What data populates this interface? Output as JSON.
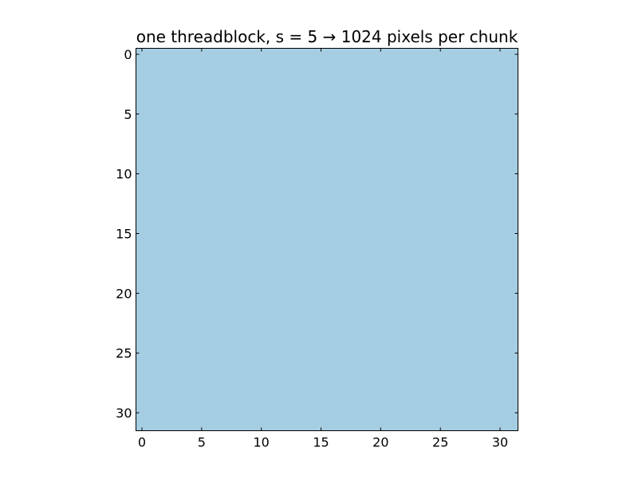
{
  "chart_data": {
    "type": "heatmap",
    "title": "one threadblock, s = 5 → 1024 pixels per chunk",
    "xlabel": "",
    "ylabel": "",
    "rows": 32,
    "cols": 32,
    "cell_value": 1,
    "fill_color": "#a6cee3",
    "xlim": [
      -0.5,
      31.5
    ],
    "ylim": [
      31.5,
      -0.5
    ],
    "xticks": [
      0,
      5,
      10,
      15,
      20,
      25,
      30
    ],
    "yticks": [
      0,
      5,
      10,
      15,
      20,
      25,
      30
    ],
    "grid": false,
    "legend": "none"
  }
}
